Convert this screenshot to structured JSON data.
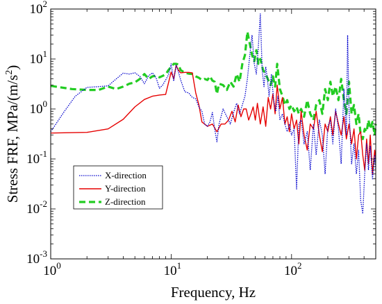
{
  "chart_data": {
    "type": "line",
    "xscale": "log",
    "yscale": "log",
    "xlim": [
      1,
      500
    ],
    "ylim": [
      0.001,
      100
    ],
    "xlabel": "Frequency, Hz",
    "ylabel_main": "Stress FRF, MPa/(m/s",
    "ylabel_sup": "2",
    "ylabel_end": ")",
    "grid": false,
    "legend_position": "lower-left",
    "x_ticks": [
      {
        "value": 1,
        "base": "10",
        "exp": "0"
      },
      {
        "value": 10,
        "base": "10",
        "exp": "1"
      },
      {
        "value": 100,
        "base": "10",
        "exp": "2"
      }
    ],
    "y_ticks": [
      {
        "value": 0.001,
        "base": "10",
        "exp": "-3"
      },
      {
        "value": 0.01,
        "base": "10",
        "exp": "-2"
      },
      {
        "value": 0.1,
        "base": "10",
        "exp": "-1"
      },
      {
        "value": 1,
        "base": "10",
        "exp": "0"
      },
      {
        "value": 10,
        "base": "10",
        "exp": "1"
      },
      {
        "value": 100,
        "base": "10",
        "exp": "2"
      }
    ],
    "series": [
      {
        "name": "X-direction",
        "color": "#0000cc",
        "style": "dotted",
        "points": [
          [
            1,
            0.35
          ],
          [
            1.3,
            0.9
          ],
          [
            1.6,
            1.8
          ],
          [
            2,
            2.7
          ],
          [
            2.5,
            2.8
          ],
          [
            3,
            2.9
          ],
          [
            3.5,
            4.0
          ],
          [
            4,
            5.2
          ],
          [
            4.5,
            5.0
          ],
          [
            5,
            5.3
          ],
          [
            5.5,
            4.5
          ],
          [
            6,
            3.2
          ],
          [
            6.5,
            4.6
          ],
          [
            7,
            5.3
          ],
          [
            7.5,
            4.2
          ],
          [
            8,
            2.6
          ],
          [
            8.5,
            3.0
          ],
          [
            9,
            3.8
          ],
          [
            9.5,
            4.8
          ],
          [
            10,
            8.0
          ],
          [
            10.5,
            3.6
          ],
          [
            11,
            7.5
          ],
          [
            11.5,
            5.5
          ],
          [
            12,
            3.8
          ],
          [
            13,
            2.2
          ],
          [
            14,
            2.1
          ],
          [
            15,
            1.7
          ],
          [
            16,
            1.6
          ],
          [
            17,
            1.1
          ],
          [
            18,
            0.9
          ],
          [
            19,
            0.5
          ],
          [
            20,
            0.45
          ],
          [
            21,
            0.55
          ],
          [
            22,
            0.85
          ],
          [
            23,
            0.4
          ],
          [
            24,
            0.22
          ],
          [
            25,
            0.5
          ],
          [
            27,
            1.0
          ],
          [
            29,
            0.7
          ],
          [
            31,
            0.5
          ],
          [
            33,
            0.85
          ],
          [
            35,
            1.3
          ],
          [
            37,
            0.8
          ],
          [
            39,
            1.2
          ],
          [
            41,
            1.8
          ],
          [
            43,
            4.0
          ],
          [
            45,
            12
          ],
          [
            47,
            30
          ],
          [
            49,
            8
          ],
          [
            51,
            5
          ],
          [
            53,
            18
          ],
          [
            55,
            80
          ],
          [
            57,
            6
          ],
          [
            59,
            2.8
          ],
          [
            61,
            7
          ],
          [
            63,
            4
          ],
          [
            65,
            1.8
          ],
          [
            68,
            5
          ],
          [
            71,
            1.5
          ],
          [
            74,
            0.9
          ],
          [
            77,
            1.8
          ],
          [
            80,
            0.6
          ],
          [
            84,
            0.8
          ],
          [
            88,
            0.5
          ],
          [
            92,
            0.35
          ],
          [
            96,
            0.5
          ],
          [
            100,
            0.3
          ],
          [
            105,
            0.4
          ],
          [
            110,
            0.025
          ],
          [
            115,
            0.5
          ],
          [
            120,
            0.6
          ],
          [
            127,
            0.2
          ],
          [
            135,
            0.35
          ],
          [
            143,
            0.06
          ],
          [
            152,
            0.5
          ],
          [
            160,
            0.12
          ],
          [
            170,
            0.6
          ],
          [
            180,
            0.3
          ],
          [
            190,
            0.05
          ],
          [
            200,
            0.45
          ],
          [
            210,
            0.6
          ],
          [
            220,
            0.2
          ],
          [
            232,
            1.0
          ],
          [
            245,
            0.4
          ],
          [
            258,
            0.08
          ],
          [
            272,
            2.5
          ],
          [
            285,
            0.3
          ],
          [
            292,
            30
          ],
          [
            300,
            1.0
          ],
          [
            315,
            0.08
          ],
          [
            330,
            0.2
          ],
          [
            345,
            0.05
          ],
          [
            360,
            0.15
          ],
          [
            375,
            0.015
          ],
          [
            390,
            0.008
          ],
          [
            405,
            0.05
          ],
          [
            420,
            0.2
          ],
          [
            435,
            0.06
          ],
          [
            450,
            0.18
          ],
          [
            470,
            0.04
          ],
          [
            490,
            0.12
          ],
          [
            500,
            0.06
          ]
        ]
      },
      {
        "name": "Y-direction",
        "color": "#e60000",
        "style": "solid",
        "points": [
          [
            1,
            0.33
          ],
          [
            2,
            0.34
          ],
          [
            3,
            0.4
          ],
          [
            4,
            0.62
          ],
          [
            5,
            1.1
          ],
          [
            6,
            1.55
          ],
          [
            7,
            1.8
          ],
          [
            8,
            1.9
          ],
          [
            9,
            1.95
          ],
          [
            10,
            5.5
          ],
          [
            10.5,
            4.0
          ],
          [
            11,
            7.5
          ],
          [
            11.5,
            6.0
          ],
          [
            12,
            5.3
          ],
          [
            13,
            5.4
          ],
          [
            14,
            5.4
          ],
          [
            15,
            5.3
          ],
          [
            16,
            2.1
          ],
          [
            17,
            1.2
          ],
          [
            18,
            0.55
          ],
          [
            20,
            0.45
          ],
          [
            22,
            0.5
          ],
          [
            24,
            0.35
          ],
          [
            26,
            0.5
          ],
          [
            28,
            0.5
          ],
          [
            30,
            0.6
          ],
          [
            32,
            0.9
          ],
          [
            34,
            0.55
          ],
          [
            36,
            1.2
          ],
          [
            38,
            0.7
          ],
          [
            40,
            1.0
          ],
          [
            42,
            1.0
          ],
          [
            44,
            0.6
          ],
          [
            46,
            0.8
          ],
          [
            48,
            1.1
          ],
          [
            50,
            0.6
          ],
          [
            52,
            1.3
          ],
          [
            55,
            0.5
          ],
          [
            58,
            1.1
          ],
          [
            61,
            0.45
          ],
          [
            64,
            1.7
          ],
          [
            67,
            1.0
          ],
          [
            70,
            2.0
          ],
          [
            73,
            0.8
          ],
          [
            76,
            3.0
          ],
          [
            80,
            1.0
          ],
          [
            84,
            1.7
          ],
          [
            88,
            0.5
          ],
          [
            92,
            0.7
          ],
          [
            96,
            0.35
          ],
          [
            100,
            0.8
          ],
          [
            105,
            0.4
          ],
          [
            110,
            0.6
          ],
          [
            115,
            0.2
          ],
          [
            120,
            0.9
          ],
          [
            127,
            0.3
          ],
          [
            135,
            0.15
          ],
          [
            143,
            0.5
          ],
          [
            152,
            0.4
          ],
          [
            160,
            0.9
          ],
          [
            170,
            0.3
          ],
          [
            180,
            0.14
          ],
          [
            190,
            0.5
          ],
          [
            200,
            0.35
          ],
          [
            210,
            0.7
          ],
          [
            220,
            0.3
          ],
          [
            232,
            0.9
          ],
          [
            245,
            0.5
          ],
          [
            258,
            0.3
          ],
          [
            272,
            0.7
          ],
          [
            285,
            0.25
          ],
          [
            300,
            0.5
          ],
          [
            315,
            0.2
          ],
          [
            330,
            0.4
          ],
          [
            345,
            0.1
          ],
          [
            360,
            0.3
          ],
          [
            375,
            0.35
          ],
          [
            390,
            0.12
          ],
          [
            405,
            0.06
          ],
          [
            420,
            0.25
          ],
          [
            435,
            0.08
          ],
          [
            450,
            0.3
          ],
          [
            470,
            0.05
          ],
          [
            490,
            0.15
          ],
          [
            500,
            0.1
          ]
        ]
      },
      {
        "name": "Z-direction",
        "color": "#22cc22",
        "style": "dashed",
        "points": [
          [
            1,
            2.9
          ],
          [
            1.5,
            2.5
          ],
          [
            2,
            2.4
          ],
          [
            2.5,
            2.4
          ],
          [
            3,
            2.8
          ],
          [
            3.5,
            2.5
          ],
          [
            4,
            2.8
          ],
          [
            4.5,
            3.2
          ],
          [
            5,
            3.4
          ],
          [
            5.5,
            4.0
          ],
          [
            6,
            5.0
          ],
          [
            6.5,
            4.0
          ],
          [
            7,
            4.5
          ],
          [
            7.5,
            4.6
          ],
          [
            8,
            4.3
          ],
          [
            8.5,
            4.6
          ],
          [
            9,
            4.9
          ],
          [
            9.5,
            6.0
          ],
          [
            10,
            7.0
          ],
          [
            10.5,
            8.0
          ],
          [
            11,
            8.0
          ],
          [
            11.5,
            7.8
          ],
          [
            12,
            6.0
          ],
          [
            13,
            5.3
          ],
          [
            14,
            5.1
          ],
          [
            15,
            5.0
          ],
          [
            16,
            4.5
          ],
          [
            17,
            4.2
          ],
          [
            18,
            3.8
          ],
          [
            19,
            4.0
          ],
          [
            20,
            3.8
          ],
          [
            21,
            4.5
          ],
          [
            22,
            3.7
          ],
          [
            23,
            3.5
          ],
          [
            24,
            2.0
          ],
          [
            25,
            3.2
          ],
          [
            27,
            3.0
          ],
          [
            29,
            2.4
          ],
          [
            31,
            3.5
          ],
          [
            33,
            2.8
          ],
          [
            35,
            5.0
          ],
          [
            37,
            3.5
          ],
          [
            39,
            8.0
          ],
          [
            41,
            12
          ],
          [
            43,
            35
          ],
          [
            45,
            20
          ],
          [
            47,
            12
          ],
          [
            49,
            9
          ],
          [
            51,
            15
          ],
          [
            53,
            8
          ],
          [
            55,
            10
          ],
          [
            58,
            6
          ],
          [
            61,
            5
          ],
          [
            64,
            3.8
          ],
          [
            67,
            3.0
          ],
          [
            70,
            4.5
          ],
          [
            73,
            2.8
          ],
          [
            76,
            8.0
          ],
          [
            80,
            2.5
          ],
          [
            84,
            1.8
          ],
          [
            88,
            1.2
          ],
          [
            92,
            1.5
          ],
          [
            96,
            1.0
          ],
          [
            100,
            1.2
          ],
          [
            105,
            0.9
          ],
          [
            110,
            1.1
          ],
          [
            115,
            0.8
          ],
          [
            120,
            1.0
          ],
          [
            127,
            0.7
          ],
          [
            135,
            1.5
          ],
          [
            143,
            0.8
          ],
          [
            152,
            0.6
          ],
          [
            160,
            1.2
          ],
          [
            170,
            1.5
          ],
          [
            180,
            0.8
          ],
          [
            190,
            2.5
          ],
          [
            200,
            1.5
          ],
          [
            210,
            3.5
          ],
          [
            220,
            1.8
          ],
          [
            232,
            2.8
          ],
          [
            245,
            1.5
          ],
          [
            258,
            4.0
          ],
          [
            272,
            1.5
          ],
          [
            285,
            0.8
          ],
          [
            300,
            3.5
          ],
          [
            315,
            0.8
          ],
          [
            330,
            1.2
          ],
          [
            345,
            0.5
          ],
          [
            360,
            0.8
          ],
          [
            375,
            0.3
          ],
          [
            390,
            0.25
          ],
          [
            405,
            0.4
          ],
          [
            420,
            0.35
          ],
          [
            435,
            0.6
          ],
          [
            450,
            0.4
          ],
          [
            470,
            0.55
          ],
          [
            490,
            0.3
          ],
          [
            500,
            0.5
          ]
        ]
      }
    ]
  }
}
